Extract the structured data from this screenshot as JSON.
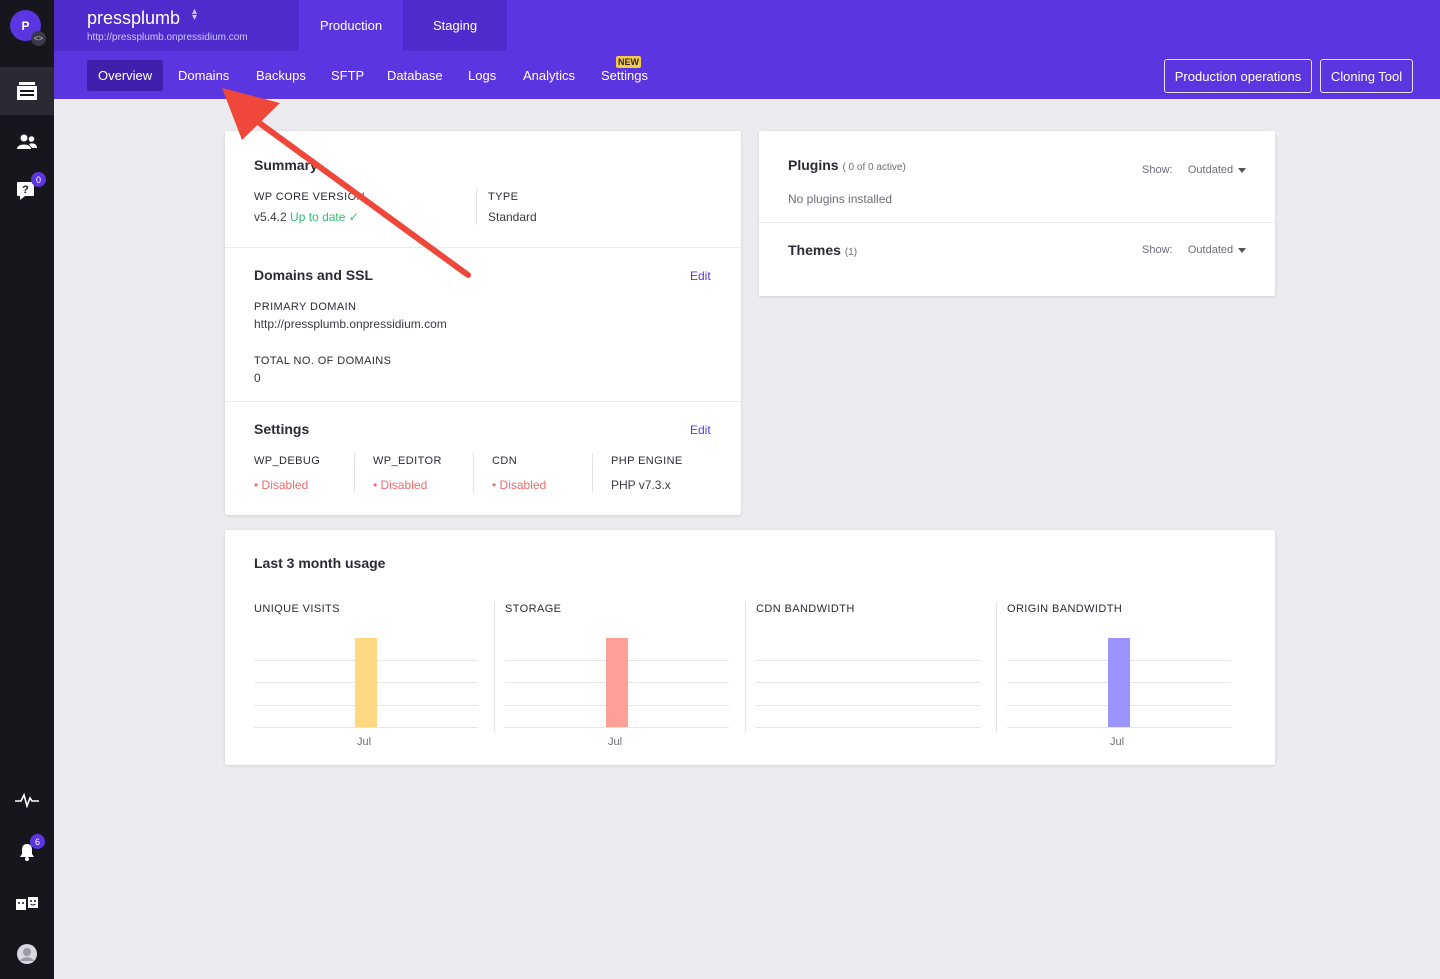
{
  "site": {
    "name": "pressplumb",
    "url": "http://pressplumb.onpressidium.com",
    "avatar_letter": "P"
  },
  "env_tabs": [
    {
      "label": "Production"
    },
    {
      "label": "Staging"
    }
  ],
  "subnav": [
    {
      "label": "Overview"
    },
    {
      "label": "Domains"
    },
    {
      "label": "Backups"
    },
    {
      "label": "SFTP"
    },
    {
      "label": "Database"
    },
    {
      "label": "Logs"
    },
    {
      "label": "Analytics"
    },
    {
      "label": "Settings"
    }
  ],
  "new_badge": "NEW",
  "header_buttons": {
    "production_operations": "Production operations",
    "cloning_tool": "Cloning Tool"
  },
  "sidebar": {
    "questions_badge": "0",
    "notifications_badge": "6"
  },
  "summary": {
    "title": "Summary",
    "wp_core_label": "WP CORE VERSION",
    "wp_core_value": "v5.4.2",
    "wp_core_status": "Up to date",
    "type_label": "TYPE",
    "type_value": "Standard"
  },
  "domains": {
    "title": "Domains and SSL",
    "edit": "Edit",
    "primary_label": "PRIMARY DOMAIN",
    "primary_value": "http://pressplumb.onpressidium.com",
    "total_label": "TOTAL NO. OF DOMAINS",
    "total_value": "0"
  },
  "settings": {
    "title": "Settings",
    "edit": "Edit",
    "items": [
      {
        "label": "WP_DEBUG",
        "value": "Disabled"
      },
      {
        "label": "WP_EDITOR",
        "value": "Disabled"
      },
      {
        "label": "CDN",
        "value": "Disabled"
      },
      {
        "label": "PHP ENGINE",
        "value": "PHP v7.3.x"
      }
    ]
  },
  "plugins": {
    "title": "Plugins",
    "count": "( 0 of 0 active)",
    "show_label": "Show:",
    "show_value": "Outdated",
    "empty": "No plugins installed"
  },
  "themes": {
    "title": "Themes",
    "count": "(1)",
    "show_label": "Show:",
    "show_value": "Outdated"
  },
  "usage": {
    "title": "Last 3 month usage"
  },
  "chart_data": [
    {
      "type": "bar",
      "title": "UNIQUE VISITS",
      "categories": [
        "Jul"
      ],
      "values": [
        1
      ],
      "color": "#ffd982"
    },
    {
      "type": "bar",
      "title": "STORAGE",
      "categories": [
        "Jul"
      ],
      "values": [
        1
      ],
      "color": "#ff9f97"
    },
    {
      "type": "bar",
      "title": "CDN BANDWIDTH",
      "categories": [],
      "values": []
    },
    {
      "type": "bar",
      "title": "ORIGIN BANDWIDTH",
      "categories": [
        "Jul"
      ],
      "values": [
        1
      ],
      "color": "#9b94ff"
    }
  ],
  "colors": {
    "brand": "#5b35e0",
    "brand_dark": "#4e2bcc",
    "annotation_arrow": "#f0473b"
  }
}
